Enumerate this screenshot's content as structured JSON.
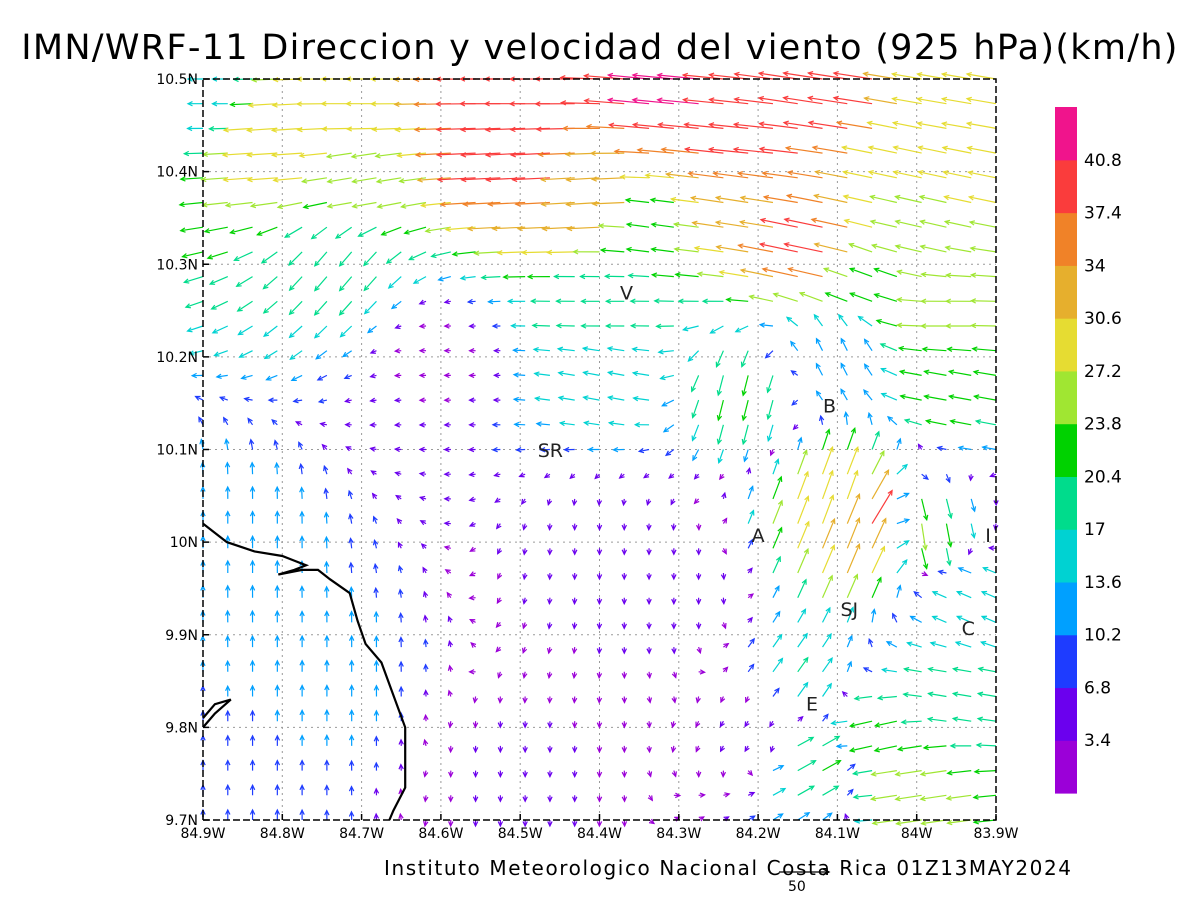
{
  "header": {
    "title": "IMN/WRF-11 Direccion y velocidad del viento (925 hPa)(km/h)"
  },
  "footer": {
    "credit": "Instituto Meteorologico Nacional Costa Rica 01Z13MAY2024",
    "reference_vector_label": "50"
  },
  "map": {
    "lon_range": [
      -84.9,
      -83.9
    ],
    "lat_range": [
      9.7,
      10.5
    ],
    "x_ticks": [
      {
        "value": -84.9,
        "label": "84.9W"
      },
      {
        "value": -84.8,
        "label": "84.8W"
      },
      {
        "value": -84.7,
        "label": "84.7W"
      },
      {
        "value": -84.6,
        "label": "84.6W"
      },
      {
        "value": -84.5,
        "label": "84.5W"
      },
      {
        "value": -84.4,
        "label": "84.4W"
      },
      {
        "value": -84.3,
        "label": "84.3W"
      },
      {
        "value": -84.2,
        "label": "84.2W"
      },
      {
        "value": -84.1,
        "label": "84.1W"
      },
      {
        "value": -84.0,
        "label": "84W"
      },
      {
        "value": -83.9,
        "label": "83.9W"
      }
    ],
    "y_ticks": [
      {
        "value": 9.7,
        "label": "9.7N"
      },
      {
        "value": 9.8,
        "label": "9.8N"
      },
      {
        "value": 9.9,
        "label": "9.9N"
      },
      {
        "value": 10.0,
        "label": "10N"
      },
      {
        "value": 10.1,
        "label": "10.1N"
      },
      {
        "value": 10.2,
        "label": "10.2N"
      },
      {
        "value": 10.3,
        "label": "10.3N"
      },
      {
        "value": 10.4,
        "label": "10.4N"
      },
      {
        "value": 10.5,
        "label": "10.5N"
      }
    ],
    "places": [
      {
        "label": "V",
        "lon": -84.366,
        "lat": 10.262
      },
      {
        "label": "B",
        "lon": -84.11,
        "lat": 10.14
      },
      {
        "label": "SR",
        "lon": -84.462,
        "lat": 10.092
      },
      {
        "label": "A",
        "lon": -84.2,
        "lat": 10.0
      },
      {
        "label": "I",
        "lon": -83.91,
        "lat": 10.0
      },
      {
        "label": "SJ",
        "lon": -84.085,
        "lat": 9.92
      },
      {
        "label": "C",
        "lon": -83.935,
        "lat": 9.9
      },
      {
        "label": "E",
        "lon": -84.132,
        "lat": 9.818
      }
    ],
    "coastline": [
      [
        -84.9,
        10.02
      ],
      [
        -84.87,
        10.0
      ],
      [
        -84.835,
        9.99
      ],
      [
        -84.8,
        9.985
      ],
      [
        -84.785,
        9.98
      ],
      [
        -84.77,
        9.975
      ],
      [
        -84.785,
        9.97
      ],
      [
        -84.805,
        9.965
      ],
      [
        -84.775,
        9.97
      ],
      [
        -84.755,
        9.97
      ],
      [
        -84.74,
        9.96
      ],
      [
        -84.715,
        9.945
      ],
      [
        -84.705,
        9.915
      ],
      [
        -84.695,
        9.89
      ],
      [
        -84.675,
        9.87
      ],
      [
        -84.66,
        9.835
      ],
      [
        -84.645,
        9.8
      ],
      [
        -84.645,
        9.765
      ],
      [
        -84.645,
        9.735
      ],
      [
        -84.66,
        9.71
      ],
      [
        -84.665,
        9.7
      ]
    ],
    "peninsula": [
      [
        -84.9,
        9.81
      ],
      [
        -84.885,
        9.825
      ],
      [
        -84.865,
        9.83
      ],
      [
        -84.885,
        9.815
      ],
      [
        -84.9,
        9.8
      ]
    ]
  },
  "chart_data": {
    "type": "vector-field",
    "title": "IMN/WRF-11 Direccion y velocidad del viento (925 hPa)(km/h)",
    "variable": "wind direction and speed at 925 hPa",
    "units": "km/h",
    "x_axis": "longitude",
    "xlim": [
      -84.9,
      -83.9
    ],
    "y_axis": "latitude",
    "ylim": [
      9.7,
      10.5
    ],
    "grid": true,
    "reference_vector": 50,
    "colorbar": {
      "levels": [
        3.4,
        6.8,
        10.2,
        13.6,
        17,
        20.4,
        23.8,
        27.2,
        30.6,
        34,
        37.4,
        40.8
      ],
      "level_labels": [
        "3.4",
        "6.8",
        "10.2",
        "13.6",
        "17",
        "20.4",
        "23.8",
        "27.2",
        "30.6",
        "34",
        "37.4",
        "40.8"
      ],
      "colors": [
        "#9b00d8",
        "#6b00ee",
        "#1e3cff",
        "#00a0ff",
        "#00d2d2",
        "#00dc8c",
        "#00d200",
        "#a0e632",
        "#e6dc32",
        "#e6af2d",
        "#f08228",
        "#fa3c3c",
        "#f0148c"
      ]
    },
    "representative_vectors": [
      {
        "lon": -84.9,
        "lat": 10.48,
        "u": -15,
        "v": 0
      },
      {
        "lon": -84.7,
        "lat": 10.48,
        "u": -30,
        "v": 0
      },
      {
        "lon": -84.5,
        "lat": 10.48,
        "u": -40,
        "v": 0
      },
      {
        "lon": -84.3,
        "lat": 10.48,
        "u": -41,
        "v": 4
      },
      {
        "lon": -84.1,
        "lat": 10.48,
        "u": -39,
        "v": 6
      },
      {
        "lon": -83.95,
        "lat": 10.48,
        "u": -29,
        "v": 5
      },
      {
        "lon": -84.8,
        "lat": 10.43,
        "u": -30,
        "v": -2
      },
      {
        "lon": -84.5,
        "lat": 10.42,
        "u": -39,
        "v": -2
      },
      {
        "lon": -84.2,
        "lat": 10.42,
        "u": -39,
        "v": 4
      },
      {
        "lon": -84.0,
        "lat": 10.41,
        "u": -28,
        "v": 6
      },
      {
        "lon": -84.7,
        "lat": 10.39,
        "u": -24,
        "v": -4
      },
      {
        "lon": -84.4,
        "lat": 10.37,
        "u": -33,
        "v": -2
      },
      {
        "lon": -84.2,
        "lat": 10.37,
        "u": -32,
        "v": 5
      },
      {
        "lon": -84.0,
        "lat": 10.34,
        "u": -26,
        "v": 6
      },
      {
        "lon": -84.72,
        "lat": 10.3,
        "u": -12,
        "v": -14
      },
      {
        "lon": -84.33,
        "lat": 10.34,
        "u": -22,
        "v": 3
      },
      {
        "lon": -84.12,
        "lat": 10.32,
        "u": -38,
        "v": 8
      },
      {
        "lon": -84.06,
        "lat": 10.29,
        "u": -22,
        "v": 8
      },
      {
        "lon": -83.95,
        "lat": 10.24,
        "u": -25,
        "v": 0
      },
      {
        "lon": -83.95,
        "lat": 10.17,
        "u": -22,
        "v": 4
      },
      {
        "lon": -84.38,
        "lat": 10.25,
        "u": -18,
        "v": 0
      },
      {
        "lon": -84.38,
        "lat": 10.18,
        "u": -16,
        "v": 3
      },
      {
        "lon": -84.22,
        "lat": 10.16,
        "u": -5,
        "v": -20
      },
      {
        "lon": -84.1,
        "lat": 10.2,
        "u": -6,
        "v": 12
      },
      {
        "lon": -84.1,
        "lat": 10.04,
        "u": 10,
        "v": 28
      },
      {
        "lon": -84.08,
        "lat": 10.0,
        "u": 12,
        "v": 30
      },
      {
        "lon": -84.05,
        "lat": 10.02,
        "u": 20,
        "v": 33
      },
      {
        "lon": -84.0,
        "lat": 10.02,
        "u": 4,
        "v": -26
      },
      {
        "lon": -84.6,
        "lat": 10.2,
        "u": -3,
        "v": 0
      },
      {
        "lon": -84.4,
        "lat": 10.0,
        "u": 0,
        "v": -5
      },
      {
        "lon": -84.3,
        "lat": 9.95,
        "u": 0,
        "v": -6
      },
      {
        "lon": -84.85,
        "lat": 10.0,
        "u": 0,
        "v": 12
      },
      {
        "lon": -84.75,
        "lat": 9.85,
        "u": 0,
        "v": 11
      },
      {
        "lon": -84.85,
        "lat": 9.75,
        "u": 0,
        "v": 10
      },
      {
        "lon": -84.5,
        "lat": 9.75,
        "u": 0,
        "v": -4
      },
      {
        "lon": -84.2,
        "lat": 9.8,
        "u": -3,
        "v": -5
      },
      {
        "lon": -84.15,
        "lat": 9.85,
        "u": 10,
        "v": 14
      },
      {
        "lon": -84.13,
        "lat": 9.76,
        "u": 18,
        "v": 10
      },
      {
        "lon": -84.05,
        "lat": 9.79,
        "u": -22,
        "v": -5
      },
      {
        "lon": -84.0,
        "lat": 9.74,
        "u": -26,
        "v": -4
      },
      {
        "lon": -83.95,
        "lat": 9.84,
        "u": -18,
        "v": 3
      },
      {
        "lon": -83.93,
        "lat": 9.93,
        "u": -14,
        "v": 6
      }
    ]
  }
}
